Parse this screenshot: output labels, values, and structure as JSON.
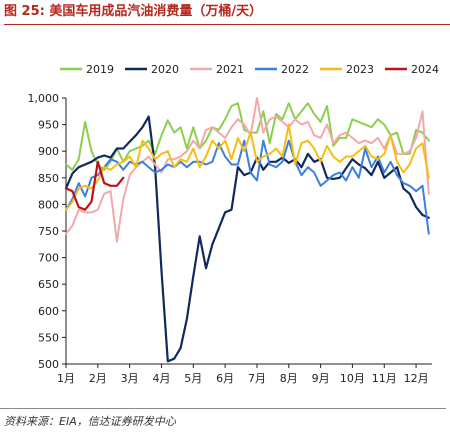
{
  "figure": {
    "title": "图 25:  美国车用成品汽油消费量（万桶/天）",
    "source": "资料来源：EIA，信达证券研发中心"
  },
  "chart_data": {
    "type": "line",
    "title": "美国车用成品汽油消费量（万桶/天）",
    "xlabel": "",
    "ylabel": "",
    "ylim": [
      500,
      1000
    ],
    "yticks": [
      500,
      550,
      600,
      650,
      700,
      750,
      800,
      850,
      900,
      950,
      1000
    ],
    "ytick_labels": [
      "500",
      "550",
      "600",
      "650",
      "700",
      "750",
      "800",
      "850",
      "900",
      "950",
      "1,000"
    ],
    "xticks": [
      1,
      2,
      3,
      4,
      5,
      6,
      7,
      8,
      9,
      10,
      11,
      12
    ],
    "xtick_labels": [
      "1月",
      "2月",
      "3月",
      "4月",
      "5月",
      "6月",
      "7月",
      "8月",
      "9月",
      "10月",
      "11月",
      "12月"
    ],
    "xlim": [
      1,
      12.5
    ],
    "x_unit": "week",
    "grid": false,
    "legend_position": "top",
    "series": [
      {
        "name": "2019",
        "color": "#8ccf4d",
        "values": [
          [
            1.0,
            875
          ],
          [
            1.2,
            865
          ],
          [
            1.4,
            885
          ],
          [
            1.6,
            955
          ],
          [
            1.8,
            900
          ],
          [
            2.0,
            875
          ],
          [
            2.2,
            865
          ],
          [
            2.4,
            880
          ],
          [
            2.6,
            905
          ],
          [
            2.8,
            880
          ],
          [
            3.0,
            900
          ],
          [
            3.2,
            905
          ],
          [
            3.4,
            910
          ],
          [
            3.6,
            920
          ],
          [
            3.8,
            895
          ],
          [
            4.0,
            930
          ],
          [
            4.2,
            958
          ],
          [
            4.4,
            935
          ],
          [
            4.6,
            945
          ],
          [
            4.8,
            905
          ],
          [
            5.0,
            945
          ],
          [
            5.2,
            905
          ],
          [
            5.4,
            920
          ],
          [
            5.6,
            945
          ],
          [
            5.8,
            940
          ],
          [
            6.0,
            960
          ],
          [
            6.2,
            985
          ],
          [
            6.4,
            990
          ],
          [
            6.6,
            940
          ],
          [
            6.8,
            935
          ],
          [
            7.0,
            935
          ],
          [
            7.2,
            975
          ],
          [
            7.4,
            915
          ],
          [
            7.6,
            970
          ],
          [
            7.8,
            960
          ],
          [
            8.0,
            990
          ],
          [
            8.2,
            960
          ],
          [
            8.4,
            975
          ],
          [
            8.6,
            990
          ],
          [
            8.8,
            970
          ],
          [
            9.0,
            955
          ],
          [
            9.2,
            985
          ],
          [
            9.4,
            910
          ],
          [
            9.6,
            925
          ],
          [
            9.8,
            925
          ],
          [
            10.0,
            960
          ],
          [
            10.2,
            955
          ],
          [
            10.4,
            950
          ],
          [
            10.6,
            945
          ],
          [
            10.8,
            960
          ],
          [
            11.0,
            950
          ],
          [
            11.2,
            930
          ],
          [
            11.4,
            935
          ],
          [
            11.6,
            895
          ],
          [
            11.8,
            895
          ],
          [
            12.0,
            940
          ],
          [
            12.2,
            935
          ],
          [
            12.4,
            920
          ]
        ]
      },
      {
        "name": "2020",
        "color": "#102a5e",
        "values": [
          [
            1.0,
            830
          ],
          [
            1.2,
            858
          ],
          [
            1.4,
            870
          ],
          [
            1.6,
            875
          ],
          [
            1.8,
            880
          ],
          [
            2.0,
            888
          ],
          [
            2.2,
            892
          ],
          [
            2.4,
            888
          ],
          [
            2.6,
            905
          ],
          [
            2.8,
            905
          ],
          [
            3.0,
            918
          ],
          [
            3.2,
            930
          ],
          [
            3.4,
            945
          ],
          [
            3.6,
            965
          ],
          [
            3.8,
            870
          ],
          [
            4.0,
            675
          ],
          [
            4.2,
            505
          ],
          [
            4.4,
            510
          ],
          [
            4.6,
            530
          ],
          [
            4.8,
            585
          ],
          [
            5.0,
            665
          ],
          [
            5.2,
            740
          ],
          [
            5.4,
            680
          ],
          [
            5.6,
            725
          ],
          [
            5.8,
            755
          ],
          [
            6.0,
            785
          ],
          [
            6.2,
            790
          ],
          [
            6.4,
            870
          ],
          [
            6.6,
            855
          ],
          [
            6.8,
            860
          ],
          [
            7.0,
            888
          ],
          [
            7.2,
            865
          ],
          [
            7.4,
            880
          ],
          [
            7.6,
            880
          ],
          [
            7.8,
            888
          ],
          [
            8.0,
            878
          ],
          [
            8.2,
            885
          ],
          [
            8.4,
            870
          ],
          [
            8.6,
            895
          ],
          [
            8.8,
            880
          ],
          [
            9.0,
            885
          ],
          [
            9.2,
            850
          ],
          [
            9.4,
            848
          ],
          [
            9.6,
            850
          ],
          [
            9.8,
            868
          ],
          [
            10.0,
            885
          ],
          [
            10.2,
            875
          ],
          [
            10.4,
            868
          ],
          [
            10.6,
            855
          ],
          [
            10.8,
            880
          ],
          [
            11.0,
            850
          ],
          [
            11.2,
            860
          ],
          [
            11.4,
            870
          ],
          [
            11.6,
            830
          ],
          [
            11.8,
            820
          ],
          [
            12.0,
            795
          ],
          [
            12.2,
            780
          ],
          [
            12.4,
            775
          ]
        ]
      },
      {
        "name": "2021",
        "color": "#f2a9a9",
        "values": [
          [
            1.0,
            745
          ],
          [
            1.2,
            760
          ],
          [
            1.4,
            790
          ],
          [
            1.6,
            785
          ],
          [
            1.8,
            785
          ],
          [
            2.0,
            790
          ],
          [
            2.2,
            820
          ],
          [
            2.4,
            825
          ],
          [
            2.6,
            730
          ],
          [
            2.8,
            810
          ],
          [
            3.0,
            855
          ],
          [
            3.2,
            870
          ],
          [
            3.4,
            880
          ],
          [
            3.6,
            890
          ],
          [
            3.8,
            875
          ],
          [
            4.0,
            860
          ],
          [
            4.2,
            885
          ],
          [
            4.4,
            885
          ],
          [
            4.6,
            890
          ],
          [
            4.8,
            900
          ],
          [
            5.0,
            920
          ],
          [
            5.2,
            905
          ],
          [
            5.4,
            940
          ],
          [
            5.6,
            945
          ],
          [
            5.8,
            935
          ],
          [
            6.0,
            925
          ],
          [
            6.2,
            945
          ],
          [
            6.4,
            960
          ],
          [
            6.6,
            950
          ],
          [
            6.8,
            930
          ],
          [
            7.0,
            1000
          ],
          [
            7.2,
            935
          ],
          [
            7.4,
            960
          ],
          [
            7.6,
            965
          ],
          [
            7.8,
            955
          ],
          [
            8.0,
            945
          ],
          [
            8.2,
            960
          ],
          [
            8.4,
            950
          ],
          [
            8.6,
            955
          ],
          [
            8.8,
            930
          ],
          [
            9.0,
            925
          ],
          [
            9.2,
            950
          ],
          [
            9.4,
            915
          ],
          [
            9.6,
            930
          ],
          [
            9.8,
            935
          ],
          [
            10.0,
            925
          ],
          [
            10.2,
            915
          ],
          [
            10.4,
            920
          ],
          [
            10.6,
            915
          ],
          [
            10.8,
            925
          ],
          [
            11.0,
            905
          ],
          [
            11.2,
            930
          ],
          [
            11.4,
            895
          ],
          [
            11.6,
            895
          ],
          [
            11.8,
            900
          ],
          [
            12.0,
            925
          ],
          [
            12.2,
            975
          ],
          [
            12.4,
            820
          ]
        ]
      },
      {
        "name": "2022",
        "color": "#3b7fe0",
        "values": [
          [
            1.0,
            790
          ],
          [
            1.2,
            810
          ],
          [
            1.4,
            840
          ],
          [
            1.6,
            815
          ],
          [
            1.8,
            850
          ],
          [
            2.0,
            855
          ],
          [
            2.2,
            870
          ],
          [
            2.4,
            885
          ],
          [
            2.6,
            880
          ],
          [
            2.8,
            865
          ],
          [
            3.0,
            880
          ],
          [
            3.2,
            875
          ],
          [
            3.4,
            880
          ],
          [
            3.6,
            870
          ],
          [
            3.8,
            860
          ],
          [
            4.0,
            865
          ],
          [
            4.2,
            875
          ],
          [
            4.4,
            870
          ],
          [
            4.6,
            880
          ],
          [
            4.8,
            870
          ],
          [
            5.0,
            880
          ],
          [
            5.2,
            880
          ],
          [
            5.4,
            875
          ],
          [
            5.6,
            880
          ],
          [
            5.8,
            915
          ],
          [
            6.0,
            890
          ],
          [
            6.2,
            875
          ],
          [
            6.4,
            875
          ],
          [
            6.6,
            920
          ],
          [
            6.8,
            860
          ],
          [
            7.0,
            845
          ],
          [
            7.2,
            920
          ],
          [
            7.4,
            875
          ],
          [
            7.6,
            870
          ],
          [
            7.8,
            880
          ],
          [
            8.0,
            920
          ],
          [
            8.2,
            880
          ],
          [
            8.4,
            855
          ],
          [
            8.6,
            870
          ],
          [
            8.8,
            860
          ],
          [
            9.0,
            835
          ],
          [
            9.2,
            845
          ],
          [
            9.4,
            855
          ],
          [
            9.6,
            860
          ],
          [
            9.8,
            845
          ],
          [
            10.0,
            870
          ],
          [
            10.2,
            850
          ],
          [
            10.4,
            905
          ],
          [
            10.6,
            870
          ],
          [
            10.8,
            890
          ],
          [
            11.0,
            860
          ],
          [
            11.2,
            880
          ],
          [
            11.4,
            855
          ],
          [
            11.6,
            840
          ],
          [
            11.8,
            835
          ],
          [
            12.0,
            825
          ],
          [
            12.2,
            835
          ],
          [
            12.4,
            745
          ]
        ]
      },
      {
        "name": "2023",
        "color": "#f6bd16",
        "values": [
          [
            1.0,
            790
          ],
          [
            1.2,
            805
          ],
          [
            1.4,
            830
          ],
          [
            1.6,
            835
          ],
          [
            1.8,
            830
          ],
          [
            2.0,
            845
          ],
          [
            2.2,
            870
          ],
          [
            2.4,
            865
          ],
          [
            2.6,
            875
          ],
          [
            2.8,
            880
          ],
          [
            3.0,
            890
          ],
          [
            3.2,
            870
          ],
          [
            3.4,
            920
          ],
          [
            3.6,
            905
          ],
          [
            3.8,
            885
          ],
          [
            4.0,
            895
          ],
          [
            4.2,
            900
          ],
          [
            4.4,
            870
          ],
          [
            4.6,
            885
          ],
          [
            4.8,
            880
          ],
          [
            5.0,
            905
          ],
          [
            5.2,
            870
          ],
          [
            5.4,
            890
          ],
          [
            5.6,
            920
          ],
          [
            5.8,
            905
          ],
          [
            6.0,
            920
          ],
          [
            6.2,
            885
          ],
          [
            6.4,
            925
          ],
          [
            6.6,
            900
          ],
          [
            6.8,
            935
          ],
          [
            7.0,
            880
          ],
          [
            7.2,
            890
          ],
          [
            7.4,
            895
          ],
          [
            7.6,
            905
          ],
          [
            7.8,
            890
          ],
          [
            8.0,
            950
          ],
          [
            8.2,
            875
          ],
          [
            8.4,
            915
          ],
          [
            8.6,
            920
          ],
          [
            8.8,
            905
          ],
          [
            9.0,
            880
          ],
          [
            9.2,
            910
          ],
          [
            9.4,
            890
          ],
          [
            9.6,
            880
          ],
          [
            9.8,
            890
          ],
          [
            10.0,
            890
          ],
          [
            10.2,
            900
          ],
          [
            10.4,
            910
          ],
          [
            10.6,
            890
          ],
          [
            10.8,
            885
          ],
          [
            11.0,
            895
          ],
          [
            11.2,
            930
          ],
          [
            11.4,
            880
          ],
          [
            11.6,
            860
          ],
          [
            11.8,
            875
          ],
          [
            12.0,
            905
          ],
          [
            12.2,
            915
          ],
          [
            12.4,
            850
          ]
        ]
      },
      {
        "name": "2024",
        "color": "#c0101a",
        "values": [
          [
            1.0,
            830
          ],
          [
            1.2,
            825
          ],
          [
            1.4,
            795
          ],
          [
            1.6,
            790
          ],
          [
            1.8,
            805
          ],
          [
            2.0,
            880
          ],
          [
            2.2,
            840
          ],
          [
            2.4,
            835
          ],
          [
            2.6,
            835
          ],
          [
            2.8,
            850
          ]
        ]
      }
    ]
  }
}
